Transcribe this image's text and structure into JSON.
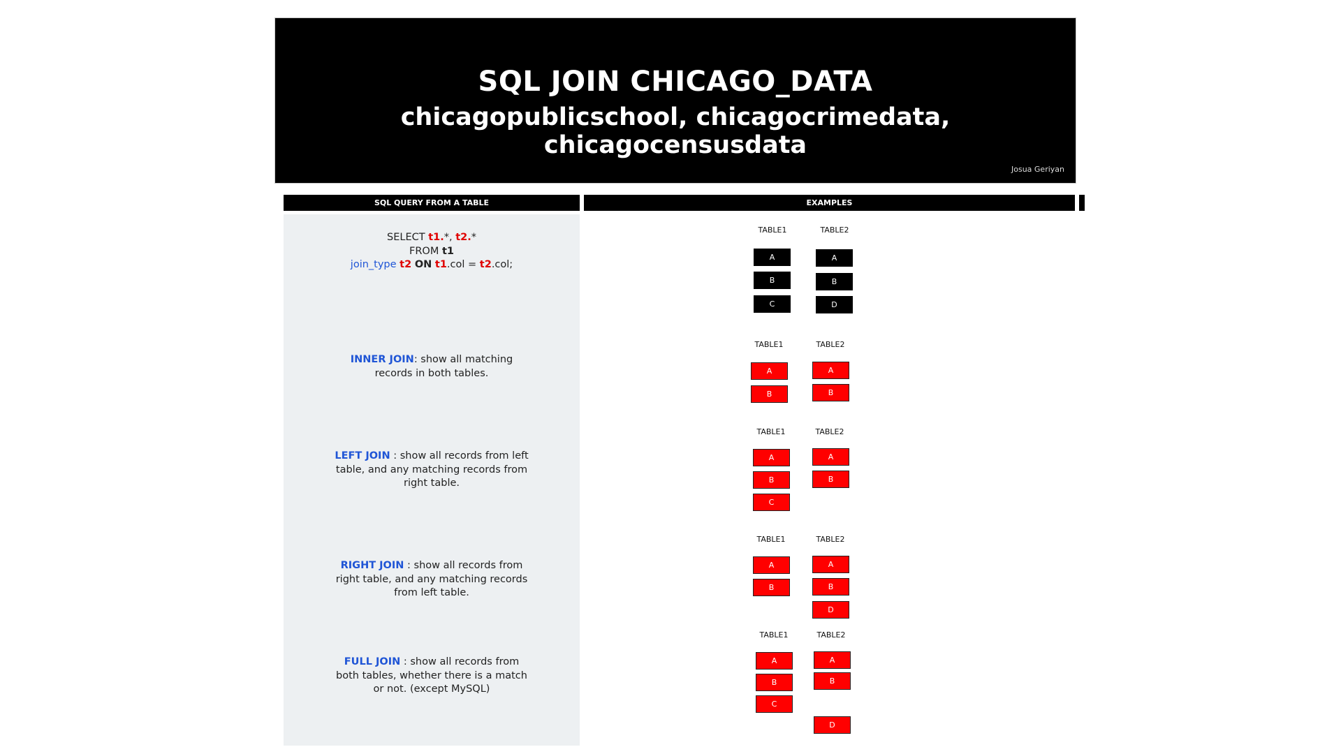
{
  "header": {
    "title": "SQL JOIN CHICAGO_DATA",
    "subtitle": "chicagopublicschool, chicagocrimedata, chicagocensusdata",
    "author": "Josua Geriyan"
  },
  "columns": {
    "left_header": "SQL QUERY FROM A TABLE",
    "right_header": "EXAMPLES"
  },
  "query": {
    "line1_a": "SELECT ",
    "line1_t1": "t1.",
    "line1_b": "*, ",
    "line1_t2": "t2.",
    "line1_c": "*",
    "line2_a": "FROM ",
    "line2_t1": "t1",
    "line3_join": "join_type",
    "line3_t2": "t2",
    "line3_on": "ON",
    "line3_t1col": "t1",
    "line3_col1": ".col = ",
    "line3_t2col": "t2",
    "line3_col2": ".col;"
  },
  "descriptions": {
    "inner": {
      "keyword": "INNER JOIN",
      "text1": ": show all matching",
      "text2": "records in both tables."
    },
    "left": {
      "keyword": "LEFT JOIN",
      "text1": " : show all records from left",
      "text2": "table, and any matching records from",
      "text3": "right table."
    },
    "right": {
      "keyword": "RIGHT JOIN",
      "text1": " : show all records from",
      "text2": "right table, and any matching records",
      "text3": "from left table."
    },
    "full": {
      "keyword": "FULL JOIN",
      "text1": " : show all records from",
      "text2": "both tables, whether there is a match",
      "text3": "or not. (except MySQL)"
    }
  },
  "examples": {
    "base": {
      "t1_label": "TABLE1",
      "t2_label": "TABLE2",
      "t1": [
        "A",
        "B",
        "C"
      ],
      "t2": [
        "A",
        "B",
        "D"
      ]
    },
    "inner": {
      "t1_label": "TABLE1",
      "t2_label": "TABLE2",
      "t1": [
        "A",
        "B"
      ],
      "t2": [
        "A",
        "B"
      ]
    },
    "left": {
      "t1_label": "TABLE1",
      "t2_label": "TABLE2",
      "t1": [
        "A",
        "B",
        "C"
      ],
      "t2": [
        "A",
        "B"
      ]
    },
    "right": {
      "t1_label": "TABLE1",
      "t2_label": "TABLE2",
      "t1": [
        "A",
        "B"
      ],
      "t2": [
        "A",
        "B",
        "D"
      ]
    },
    "full": {
      "t1_label": "TABLE1",
      "t2_label": "TABLE2",
      "t1": [
        "A",
        "B",
        "C"
      ],
      "t2": [
        "A",
        "B",
        "D"
      ]
    }
  },
  "colors": {
    "header_bg": "#000000",
    "panel_bg": "#edf0f2",
    "keyword_blue": "#1f55d6",
    "accent_red": "#e00000",
    "box_red": "#ff0000"
  }
}
